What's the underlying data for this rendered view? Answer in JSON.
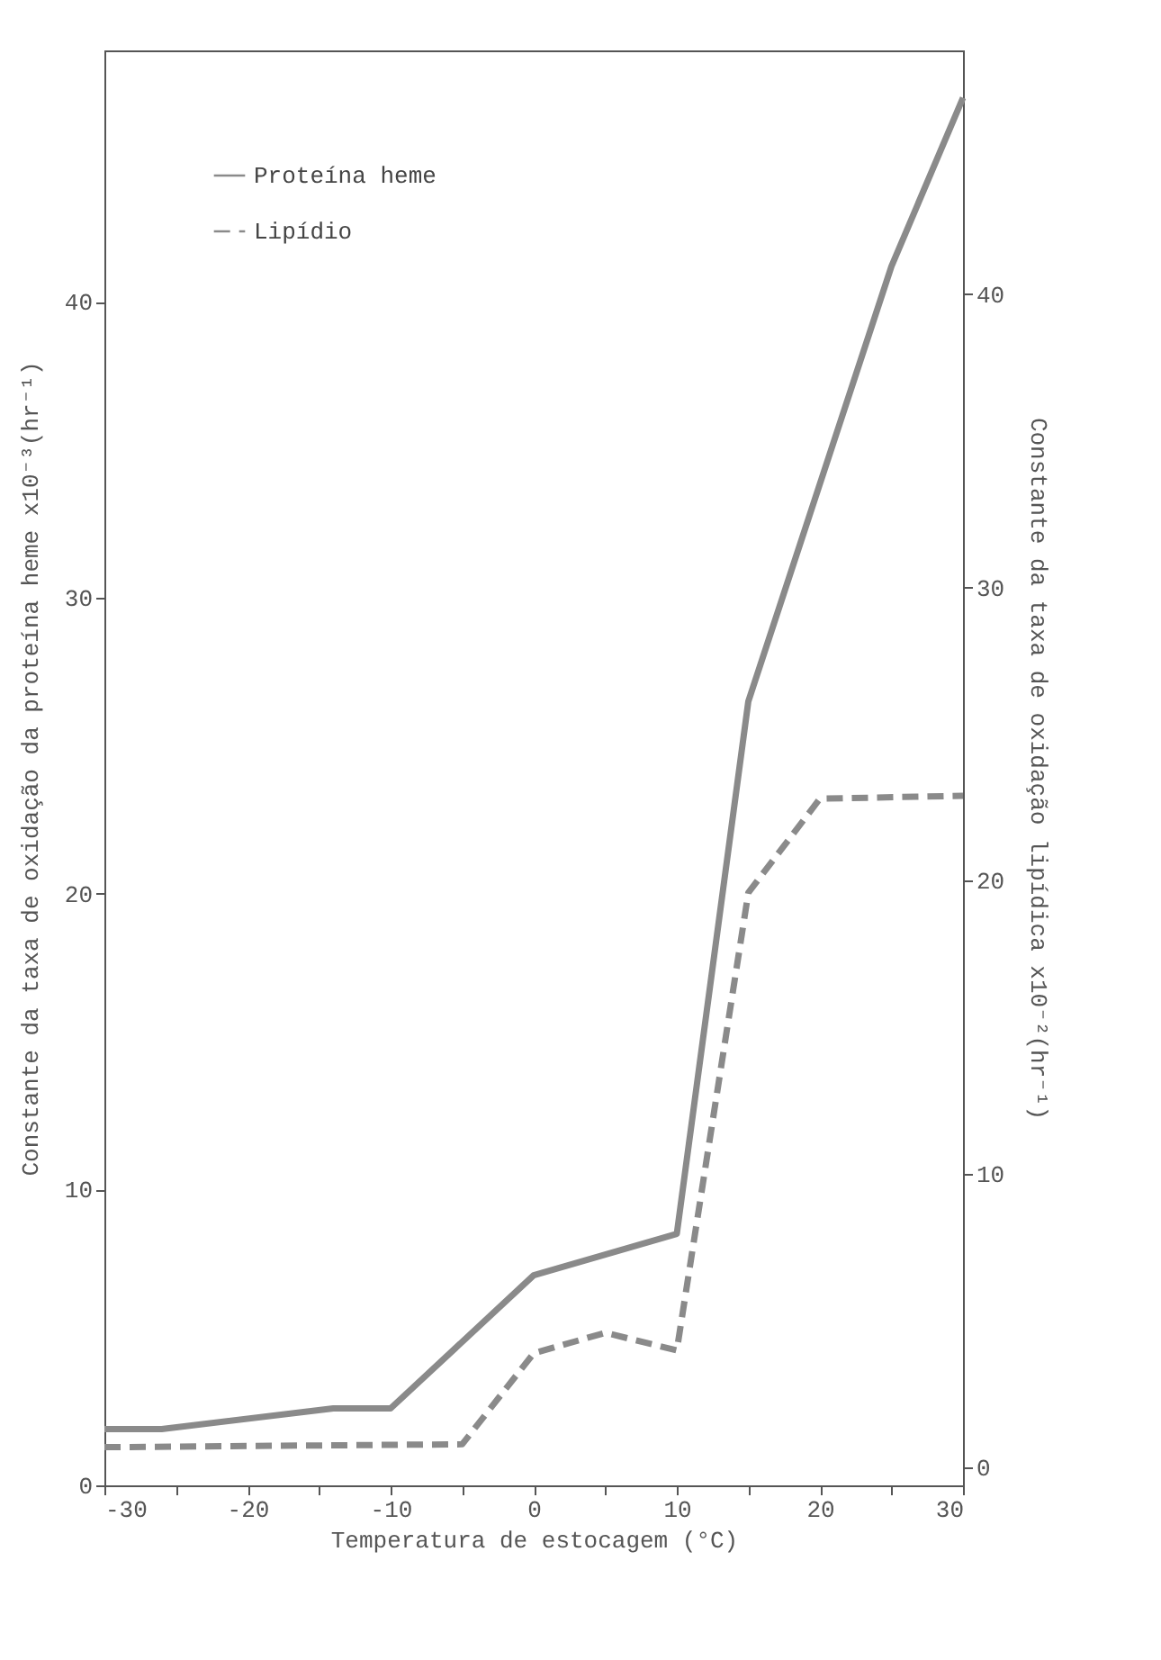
{
  "chart_data": {
    "type": "line",
    "xlabel": "Temperatura de estocagem (°C)",
    "ylabel": "Constante da taxa de oxidação da proteína heme x10⁻³(hr⁻¹)",
    "y2label": "Constante da taxa de oxidação lipídica x10⁻²(hr⁻¹)",
    "xlim": [
      -30,
      30
    ],
    "xticks": [
      -30,
      {
        "value": -25,
        "label": null
      },
      -20,
      {
        "value": -15,
        "label": null
      },
      -10,
      {
        "value": -5,
        "label": null
      },
      0,
      {
        "value": 5,
        "label": null
      },
      10,
      {
        "value": 15,
        "label": null
      },
      20,
      {
        "value": 25,
        "label": null
      },
      30
    ],
    "ylim": [
      0,
      48.5
    ],
    "yticks": [
      0,
      10,
      20,
      30,
      40
    ],
    "y2lim": [
      -0.6,
      48.3
    ],
    "y2ticks": [
      0,
      10,
      20,
      30,
      40
    ],
    "grid": false,
    "legend": "top left",
    "marker": "none",
    "series": [
      {
        "name": "Proteína heme",
        "color": "#8a8a8a",
        "line_style": "solid",
        "x": [
          -30,
          -26,
          -14,
          -10,
          0,
          10,
          15,
          25,
          30
        ],
        "values": [
          1.9,
          1.9,
          2.6,
          2.6,
          7.1,
          8.5,
          26.5,
          41.2,
          46.9
        ]
      },
      {
        "name": "Lipídio",
        "color": "#8a8a8a",
        "line_style": "dashed",
        "axis": "y2",
        "x": [
          -30,
          -5,
          0,
          5,
          10,
          15,
          20,
          30
        ],
        "values": [
          0.7,
          0.8,
          3.9,
          4.6,
          4.0,
          19.6,
          22.8,
          22.9
        ]
      }
    ]
  }
}
